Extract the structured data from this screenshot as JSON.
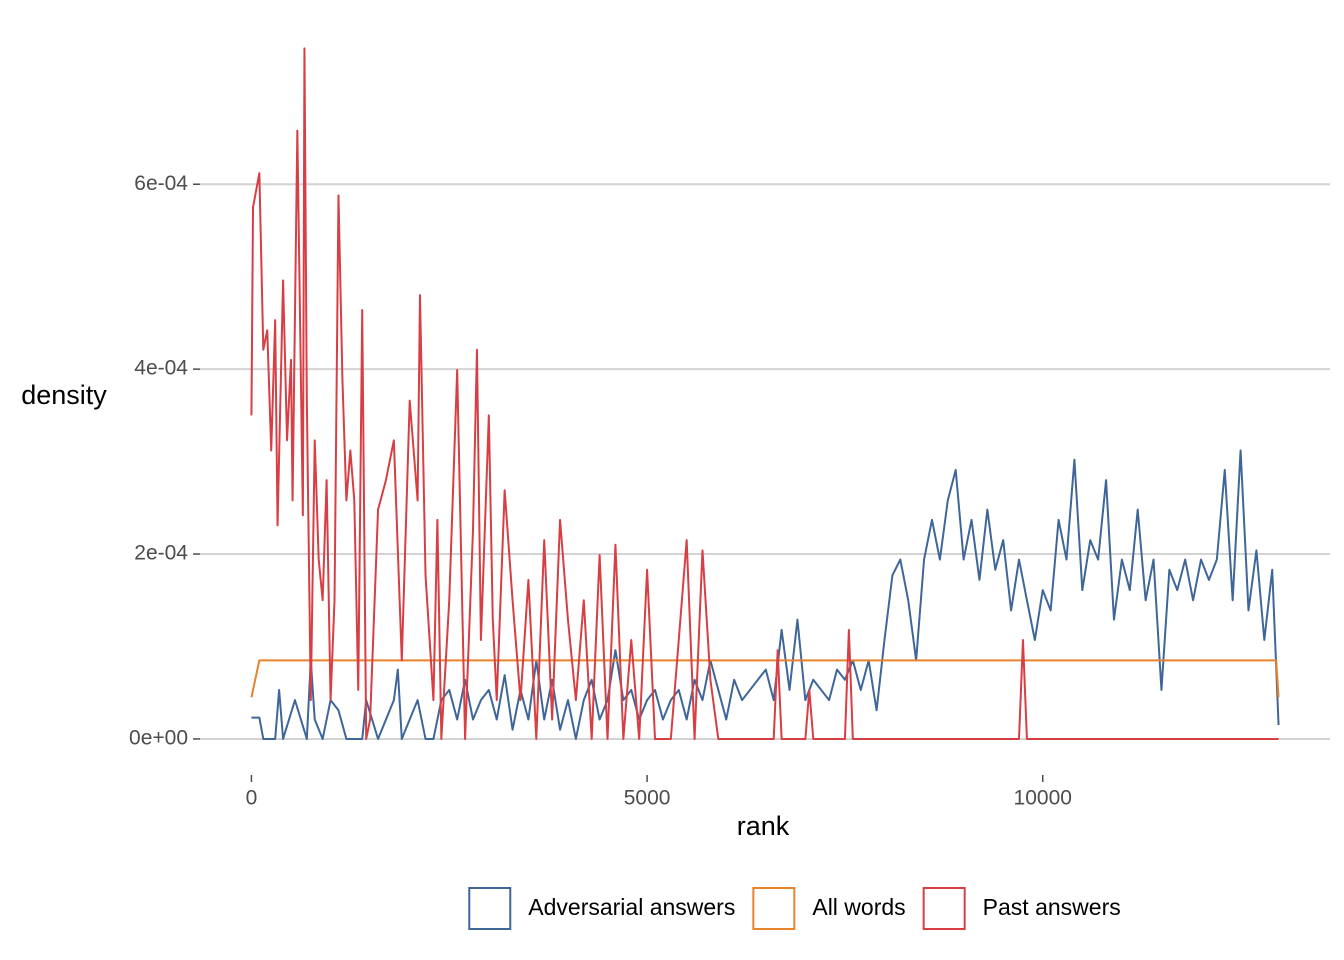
{
  "chart_data": {
    "type": "line",
    "xlabel": "rank",
    "ylabel": "density",
    "xlim": [
      -650,
      13630
    ],
    "ylim": [
      -3.9e-05,
      0.000756
    ],
    "xticks": [
      0,
      5000,
      10000
    ],
    "yticks": [
      {
        "value": 0,
        "label": "0e+00"
      },
      {
        "value": 0.0002,
        "label": "2e-04"
      },
      {
        "value": 0.0004,
        "label": "4e-04"
      },
      {
        "value": 0.0006,
        "label": "6e-04"
      }
    ],
    "grid": true,
    "legend": "bottom",
    "series": [
      {
        "name": "Adversarial answers",
        "color": "#3f6699",
        "x": [
          0,
          100,
          150,
          300,
          350,
          400,
          550,
          700,
          750,
          800,
          900,
          1000,
          1100,
          1200,
          1400,
          1450,
          1600,
          1800,
          1850,
          1900,
          2000,
          2100,
          2200,
          2300,
          2400,
          2500,
          2600,
          2700,
          2800,
          2900,
          3000,
          3100,
          3200,
          3300,
          3400,
          3500,
          3600,
          3700,
          3800,
          3900,
          4000,
          4100,
          4200,
          4300,
          4400,
          4500,
          4600,
          4700,
          4800,
          4900,
          5000,
          5100,
          5200,
          5300,
          5400,
          5500,
          5600,
          5700,
          5800,
          5900,
          6000,
          6100,
          6200,
          6300,
          6400,
          6500,
          6600,
          6700,
          6800,
          6900,
          7000,
          7100,
          7200,
          7300,
          7400,
          7500,
          7600,
          7700,
          7800,
          7900,
          8000,
          8100,
          8200,
          8300,
          8400,
          8500,
          8600,
          8700,
          8800,
          8900,
          9000,
          9100,
          9200,
          9300,
          9400,
          9500,
          9600,
          9700,
          9800,
          9900,
          10000,
          10100,
          10200,
          10300,
          10400,
          10500,
          10600,
          10700,
          10800,
          10900,
          11000,
          11100,
          11200,
          11300,
          11400,
          11500,
          11600,
          11700,
          11800,
          11900,
          12000,
          12100,
          12200,
          12300,
          12400,
          12500,
          12600,
          12700,
          12800,
          12900,
          12980
        ],
        "values": [
          2.3e-05,
          2.3e-05,
          0,
          0,
          5.3e-05,
          0,
          4.2e-05,
          0,
          8.5e-05,
          2.1e-05,
          0,
          4.2e-05,
          3.1e-05,
          0,
          0,
          4.2e-05,
          0,
          4.2e-05,
          7.5e-05,
          0,
          2.1e-05,
          4.2e-05,
          0,
          0,
          4.2e-05,
          5.3e-05,
          2.1e-05,
          6.4e-05,
          2.1e-05,
          4.2e-05,
          5.3e-05,
          2.1e-05,
          6.9e-05,
          1e-05,
          5.3e-05,
          2.1e-05,
          8.5e-05,
          2.1e-05,
          6.4e-05,
          1e-05,
          4.2e-05,
          0,
          4.2e-05,
          6.4e-05,
          2.1e-05,
          4.2e-05,
          9.6e-05,
          4.2e-05,
          5.3e-05,
          2.1e-05,
          4.2e-05,
          5.3e-05,
          2.1e-05,
          4.2e-05,
          5.3e-05,
          2.1e-05,
          6.4e-05,
          4.2e-05,
          8.5e-05,
          5.3e-05,
          2.1e-05,
          6.4e-05,
          4.2e-05,
          5.3e-05,
          6.4e-05,
          7.5e-05,
          4.2e-05,
          0.000118,
          5.3e-05,
          0.000129,
          4.2e-05,
          6.4e-05,
          5.3e-05,
          4.2e-05,
          7.5e-05,
          6.4e-05,
          8.5e-05,
          5.3e-05,
          8.5e-05,
          3.1e-05,
          0.000107,
          0.000177,
          0.000194,
          0.00015,
          8.5e-05,
          0.000194,
          0.000237,
          0.000194,
          0.000258,
          0.000291,
          0.000194,
          0.000237,
          0.000172,
          0.000248,
          0.000183,
          0.000215,
          0.000139,
          0.000194,
          0.00015,
          0.000107,
          0.000161,
          0.000139,
          0.000237,
          0.000194,
          0.000302,
          0.000161,
          0.000215,
          0.000194,
          0.00028,
          0.000129,
          0.000194,
          0.000161,
          0.000248,
          0.00015,
          0.000194,
          5.3e-05,
          0.000183,
          0.000161,
          0.000194,
          0.00015,
          0.000194,
          0.000172,
          0.000194,
          0.000291,
          0.00015,
          0.000312,
          0.000139,
          0.000204,
          0.000107,
          0.000183,
          1.5e-05
        ]
      },
      {
        "name": "All words",
        "color": "#e8822b",
        "x": [
          0,
          100,
          12950,
          12980
        ],
        "values": [
          4.5e-05,
          8.5e-05,
          8.5e-05,
          4.5e-05
        ]
      },
      {
        "name": "Past answers",
        "color": "#d73f45",
        "x": [
          0,
          20,
          100,
          150,
          200,
          250,
          300,
          330,
          400,
          450,
          500,
          520,
          580,
          650,
          670,
          700,
          750,
          800,
          850,
          900,
          950,
          1000,
          1050,
          1100,
          1150,
          1200,
          1250,
          1300,
          1350,
          1400,
          1450,
          1500,
          1600,
          1700,
          1800,
          1900,
          2000,
          2100,
          2130,
          2200,
          2300,
          2350,
          2400,
          2500,
          2600,
          2700,
          2800,
          2850,
          2900,
          3000,
          3050,
          3100,
          3200,
          3300,
          3400,
          3500,
          3600,
          3700,
          3800,
          3900,
          4000,
          4100,
          4200,
          4300,
          4400,
          4500,
          4600,
          4700,
          4800,
          4900,
          5000,
          5100,
          5300,
          5400,
          5500,
          5600,
          5700,
          5800,
          5900,
          6600,
          6650,
          6700,
          7000,
          7050,
          7100,
          7500,
          7550,
          7600,
          9700,
          9750,
          9800,
          12980
        ],
        "values": [
          0.00035,
          0.000575,
          0.000612,
          0.000421,
          0.000442,
          0.000312,
          0.000453,
          0.000231,
          0.000496,
          0.000323,
          0.00041,
          0.000258,
          0.000658,
          0.000242,
          0.000747,
          0.000366,
          4.2e-05,
          0.000323,
          0.000194,
          0.00015,
          0.00028,
          4.2e-05,
          0.00015,
          0.000588,
          0.000388,
          0.000258,
          0.000312,
          0.000258,
          5.3e-05,
          0.000464,
          0,
          2.1e-05,
          0.000248,
          0.00028,
          0.000323,
          8.5e-05,
          0.000366,
          0.000258,
          0.00048,
          0.000177,
          4.2e-05,
          0.000237,
          0,
          0.00015,
          0.000399,
          0,
          0.000226,
          0.000421,
          0.000107,
          0.00035,
          0.000129,
          4.2e-05,
          0.000269,
          0.00015,
          4.2e-05,
          0.000172,
          0,
          0.000215,
          2.1e-05,
          0.000237,
          0.000129,
          4.2e-05,
          0.00015,
          0,
          0.000199,
          0,
          0.00021,
          0,
          0.000107,
          0,
          0.000183,
          0,
          0,
          0.000107,
          0.000215,
          0,
          0.000204,
          6.4e-05,
          0,
          0,
          9.6e-05,
          0,
          0,
          5.3e-05,
          0,
          0,
          0.000118,
          0,
          0,
          0.000107,
          0,
          0
        ]
      }
    ]
  }
}
